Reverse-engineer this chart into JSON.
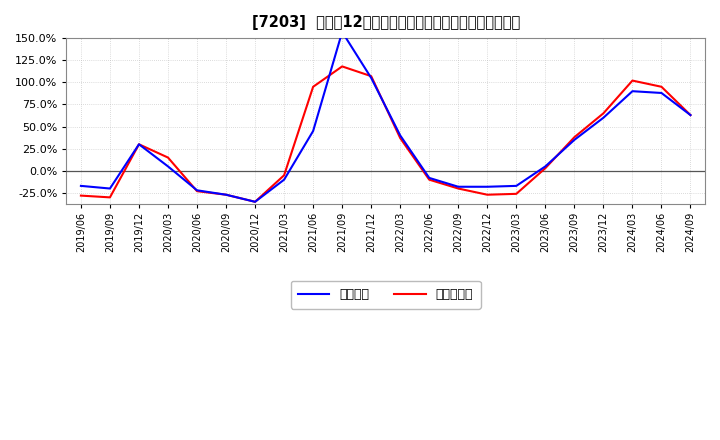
{
  "title": "[7203]  利益だ12か月移動合計の対前年同期増減率の推移",
  "legend_labels": [
    "経常利益",
    "当期純利益"
  ],
  "line_colors": [
    "#0000FF",
    "#FF0000"
  ],
  "background_color": "#FFFFFF",
  "plot_bg_color": "#FFFFFF",
  "grid_color": "#AAAAAA",
  "ylim": [
    -0.38,
    0.18
  ],
  "yticks": [
    -0.25,
    0.0,
    0.25,
    0.5,
    0.75,
    1.0,
    1.25,
    1.5
  ],
  "x_labels": [
    "2019/06",
    "2019/09",
    "2019/12",
    "2020/03",
    "2020/06",
    "2020/09",
    "2020/12",
    "2021/03",
    "2021/06",
    "2021/09",
    "2021/12",
    "2022/03",
    "2022/06",
    "2022/09",
    "2022/12",
    "2023/03",
    "2023/06",
    "2023/09",
    "2023/12",
    "2024/03",
    "2024/06",
    "2024/09"
  ],
  "keijo": [
    -0.17,
    -0.2,
    0.3,
    0.05,
    -0.22,
    -0.27,
    -0.35,
    -0.1,
    0.45,
    1.57,
    1.05,
    0.4,
    -0.08,
    -0.18,
    -0.18,
    -0.17,
    0.05,
    0.35,
    0.6,
    0.9,
    0.88,
    0.63
  ],
  "junri": [
    -0.28,
    -0.3,
    0.3,
    0.15,
    -0.23,
    -0.27,
    -0.35,
    -0.05,
    0.95,
    1.18,
    1.07,
    0.37,
    -0.1,
    -0.2,
    -0.27,
    -0.26,
    0.03,
    0.38,
    0.65,
    1.02,
    0.95,
    0.63
  ]
}
